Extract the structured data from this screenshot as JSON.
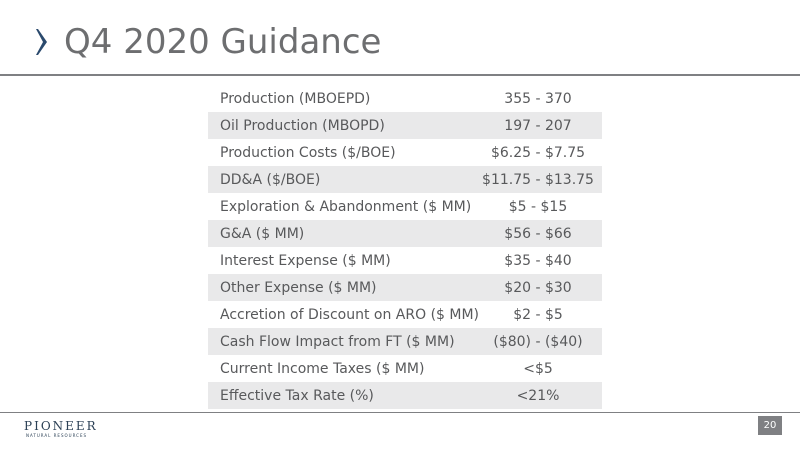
{
  "header": {
    "title": "Q4 2020 Guidance"
  },
  "colors": {
    "accent": "#2b4a6d",
    "text": "#58595b",
    "title": "#6d6e70",
    "row_shade": "#e9e9ea",
    "rule": "#7f8083"
  },
  "table": {
    "rows": [
      {
        "label": "Production (MBOEPD)",
        "value": "355 - 370"
      },
      {
        "label": "Oil Production (MBOPD)",
        "value": "197 - 207"
      },
      {
        "label": "Production Costs ($/BOE)",
        "value": "$6.25 - $7.75"
      },
      {
        "label": "DD&A ($/BOE)",
        "value": "$11.75 - $13.75"
      },
      {
        "label": "Exploration & Abandonment ($ MM)",
        "value": "$5 - $15"
      },
      {
        "label": "G&A ($ MM)",
        "value": "$56 - $66"
      },
      {
        "label": "Interest Expense ($ MM)",
        "value": "$35 - $40"
      },
      {
        "label": "Other Expense ($ MM)",
        "value": "$20 - $30"
      },
      {
        "label": "Accretion of Discount on ARO ($ MM)",
        "value": "$2 - $5"
      },
      {
        "label": "Cash Flow Impact from FT ($ MM)",
        "value": "($80) - ($40)"
      },
      {
        "label": "Current Income Taxes ($ MM)",
        "value": "<$5"
      },
      {
        "label": "Effective Tax Rate (%)",
        "value": "<21%"
      }
    ]
  },
  "footer": {
    "logo_name": "PIONEER",
    "logo_tagline": "NATURAL RESOURCES",
    "page_number": "20"
  }
}
